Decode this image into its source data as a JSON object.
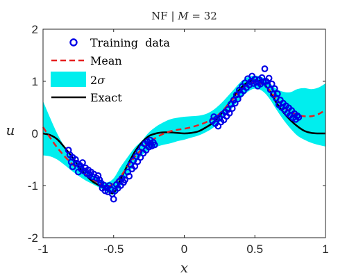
{
  "chart_data": {
    "type": "line",
    "title": "NF | M = 32",
    "title_parts": {
      "prefix": "NF | ",
      "var": "M",
      "suffix": " = 32"
    },
    "xlabel": "x",
    "ylabel": "u",
    "xlim": [
      -1,
      1
    ],
    "ylim": [
      -2,
      2
    ],
    "xticks": [
      -1,
      -0.5,
      0,
      0.5,
      1
    ],
    "yticks": [
      -2,
      -1,
      0,
      1,
      2
    ],
    "xtick_labels": [
      "-1",
      "-0.5",
      "0",
      "0.5",
      "1"
    ],
    "ytick_labels": [
      "-2",
      "-1",
      "0",
      "1",
      "2"
    ],
    "grid": false,
    "legend_placement": "top-left",
    "legend": {
      "training": "Training  data",
      "mean": "Mean",
      "band": "2",
      "band_symbol": "σ",
      "exact": "Exact"
    },
    "colors": {
      "training": "#0000E6",
      "mean": "#E62020",
      "band": "#00EEEE",
      "exact": "#000000"
    },
    "exact_curve": {
      "x": [
        -1.0,
        -0.95,
        -0.9,
        -0.85,
        -0.8,
        -0.75,
        -0.7,
        -0.65,
        -0.6,
        -0.55,
        -0.5,
        -0.45,
        -0.4,
        -0.35,
        -0.3,
        -0.25,
        -0.2,
        -0.15,
        -0.1,
        -0.05,
        0.0,
        0.05,
        0.1,
        0.15,
        0.2,
        0.25,
        0.3,
        0.35,
        0.4,
        0.45,
        0.5,
        0.55,
        0.6,
        0.65,
        0.7,
        0.75,
        0.8,
        0.85,
        0.9,
        0.95,
        1.0
      ],
      "y": [
        0.0,
        -0.03,
        -0.11,
        -0.26,
        -0.43,
        -0.62,
        -0.79,
        -0.92,
        -1.0,
        -1.08,
        -1.14,
        -0.87,
        -0.6,
        -0.35,
        -0.17,
        -0.05,
        0.0,
        0.02,
        0.02,
        0.01,
        0.0,
        0.01,
        0.04,
        0.11,
        0.2,
        0.34,
        0.52,
        0.7,
        0.87,
        0.98,
        1.02,
        0.98,
        0.83,
        0.6,
        0.41,
        0.26,
        0.14,
        0.05,
        0.01,
        0.0,
        0.0
      ]
    },
    "mean_curve": {
      "x": [
        -1.0,
        -0.95,
        -0.9,
        -0.85,
        -0.8,
        -0.75,
        -0.7,
        -0.65,
        -0.6,
        -0.55,
        -0.5,
        -0.45,
        -0.4,
        -0.35,
        -0.3,
        -0.25,
        -0.2,
        -0.15,
        -0.1,
        -0.05,
        0.0,
        0.05,
        0.1,
        0.15,
        0.2,
        0.25,
        0.3,
        0.35,
        0.4,
        0.45,
        0.5,
        0.55,
        0.6,
        0.65,
        0.7,
        0.75,
        0.8,
        0.85,
        0.9,
        0.95,
        1.0
      ],
      "y": [
        0.12,
        -0.08,
        -0.27,
        -0.43,
        -0.57,
        -0.69,
        -0.79,
        -0.88,
        -0.96,
        -1.02,
        -0.96,
        -0.82,
        -0.63,
        -0.45,
        -0.3,
        -0.18,
        -0.08,
        -0.01,
        0.04,
        0.07,
        0.09,
        0.12,
        0.16,
        0.21,
        0.28,
        0.38,
        0.52,
        0.68,
        0.83,
        0.94,
        0.98,
        0.95,
        0.84,
        0.67,
        0.52,
        0.42,
        0.36,
        0.33,
        0.33,
        0.37,
        0.45
      ]
    },
    "band": {
      "x": [
        -1.0,
        -0.95,
        -0.9,
        -0.85,
        -0.8,
        -0.75,
        -0.7,
        -0.65,
        -0.6,
        -0.55,
        -0.5,
        -0.45,
        -0.4,
        -0.35,
        -0.3,
        -0.25,
        -0.2,
        -0.15,
        -0.1,
        -0.05,
        0.0,
        0.05,
        0.1,
        0.15,
        0.2,
        0.25,
        0.3,
        0.35,
        0.4,
        0.45,
        0.5,
        0.55,
        0.6,
        0.65,
        0.7,
        0.75,
        0.8,
        0.85,
        0.9,
        0.95,
        1.0
      ],
      "lower": [
        -0.42,
        -0.44,
        -0.5,
        -0.6,
        -0.71,
        -0.81,
        -0.9,
        -0.97,
        -1.04,
        -1.12,
        -1.17,
        -1.0,
        -0.79,
        -0.59,
        -0.42,
        -0.32,
        -0.26,
        -0.22,
        -0.19,
        -0.15,
        -0.12,
        -0.08,
        -0.04,
        0.02,
        0.1,
        0.21,
        0.36,
        0.52,
        0.67,
        0.8,
        0.86,
        0.82,
        0.68,
        0.47,
        0.27,
        0.1,
        -0.04,
        -0.12,
        -0.18,
        -0.22,
        -0.25
      ],
      "upper": [
        0.62,
        0.3,
        0.0,
        -0.24,
        -0.41,
        -0.56,
        -0.68,
        -0.79,
        -0.88,
        -0.94,
        -0.86,
        -0.64,
        -0.45,
        -0.27,
        -0.14,
        0.02,
        0.13,
        0.21,
        0.27,
        0.3,
        0.32,
        0.33,
        0.34,
        0.37,
        0.44,
        0.55,
        0.69,
        0.84,
        0.99,
        1.08,
        1.11,
        1.08,
        0.98,
        0.86,
        0.8,
        0.79,
        0.85,
        0.87,
        0.85,
        0.88,
        0.96
      ]
    },
    "training_points": {
      "x": [
        -0.82,
        -0.81,
        -0.8,
        -0.79,
        -0.79,
        -0.77,
        -0.76,
        -0.75,
        -0.74,
        -0.73,
        -0.72,
        -0.71,
        -0.7,
        -0.69,
        -0.68,
        -0.67,
        -0.66,
        -0.65,
        -0.64,
        -0.62,
        -0.61,
        -0.6,
        -0.59,
        -0.58,
        -0.57,
        -0.56,
        -0.55,
        -0.54,
        -0.53,
        -0.52,
        -0.51,
        -0.5,
        -0.49,
        -0.48,
        -0.47,
        -0.46,
        -0.45,
        -0.44,
        -0.43,
        -0.42,
        -0.4,
        -0.39,
        -0.38,
        -0.37,
        -0.36,
        -0.35,
        -0.34,
        -0.33,
        -0.32,
        -0.31,
        -0.3,
        -0.29,
        -0.28,
        -0.27,
        -0.26,
        -0.25,
        -0.24,
        -0.24,
        -0.23,
        -0.22,
        -0.21,
        0.2,
        0.21,
        0.22,
        0.23,
        0.24,
        0.25,
        0.26,
        0.27,
        0.28,
        0.29,
        0.3,
        0.31,
        0.32,
        0.33,
        0.34,
        0.35,
        0.36,
        0.37,
        0.38,
        0.39,
        0.4,
        0.41,
        0.42,
        0.43,
        0.44,
        0.45,
        0.46,
        0.47,
        0.48,
        0.49,
        0.5,
        0.51,
        0.52,
        0.53,
        0.54,
        0.55,
        0.56,
        0.57,
        0.58,
        0.59,
        0.6,
        0.61,
        0.62,
        0.63,
        0.64,
        0.65,
        0.66,
        0.67,
        0.68,
        0.69,
        0.7,
        0.71,
        0.72,
        0.73,
        0.74,
        0.75,
        0.76,
        0.77,
        0.78,
        0.79,
        0.8,
        0.81
      ],
      "y": [
        -0.32,
        -0.41,
        -0.55,
        -0.46,
        -0.64,
        -0.5,
        -0.57,
        -0.74,
        -0.61,
        -0.68,
        -0.56,
        -0.72,
        -0.66,
        -0.77,
        -0.7,
        -0.8,
        -0.74,
        -0.83,
        -0.78,
        -0.86,
        -0.81,
        -0.89,
        -0.95,
        -1.05,
        -0.99,
        -1.1,
        -1.04,
        -1.12,
        -1.0,
        -1.07,
        -1.16,
        -1.26,
        -1.1,
        -0.98,
        -1.05,
        -0.92,
        -1.0,
        -0.86,
        -0.94,
        -0.89,
        -0.74,
        -0.82,
        -0.6,
        -0.68,
        -0.52,
        -0.63,
        -0.44,
        -0.54,
        -0.35,
        -0.46,
        -0.27,
        -0.38,
        -0.2,
        -0.32,
        -0.16,
        -0.26,
        -0.21,
        -0.13,
        -0.24,
        -0.17,
        -0.22,
        0.24,
        0.32,
        0.19,
        0.28,
        0.14,
        0.3,
        0.22,
        0.36,
        0.26,
        0.41,
        0.33,
        0.46,
        0.39,
        0.56,
        0.48,
        0.64,
        0.58,
        0.74,
        0.66,
        0.83,
        0.76,
        0.9,
        0.82,
        0.97,
        0.88,
        1.05,
        0.93,
        0.99,
        1.1,
        0.96,
        1.04,
        0.98,
        0.91,
        1.03,
        0.95,
        1.07,
        0.99,
        1.24,
        1.0,
        0.93,
        1.06,
        0.84,
        0.95,
        0.75,
        0.86,
        0.68,
        0.76,
        0.55,
        0.64,
        0.5,
        0.58,
        0.45,
        0.53,
        0.39,
        0.49,
        0.35,
        0.44,
        0.3,
        0.38,
        0.27,
        0.34,
        0.31
      ]
    }
  }
}
